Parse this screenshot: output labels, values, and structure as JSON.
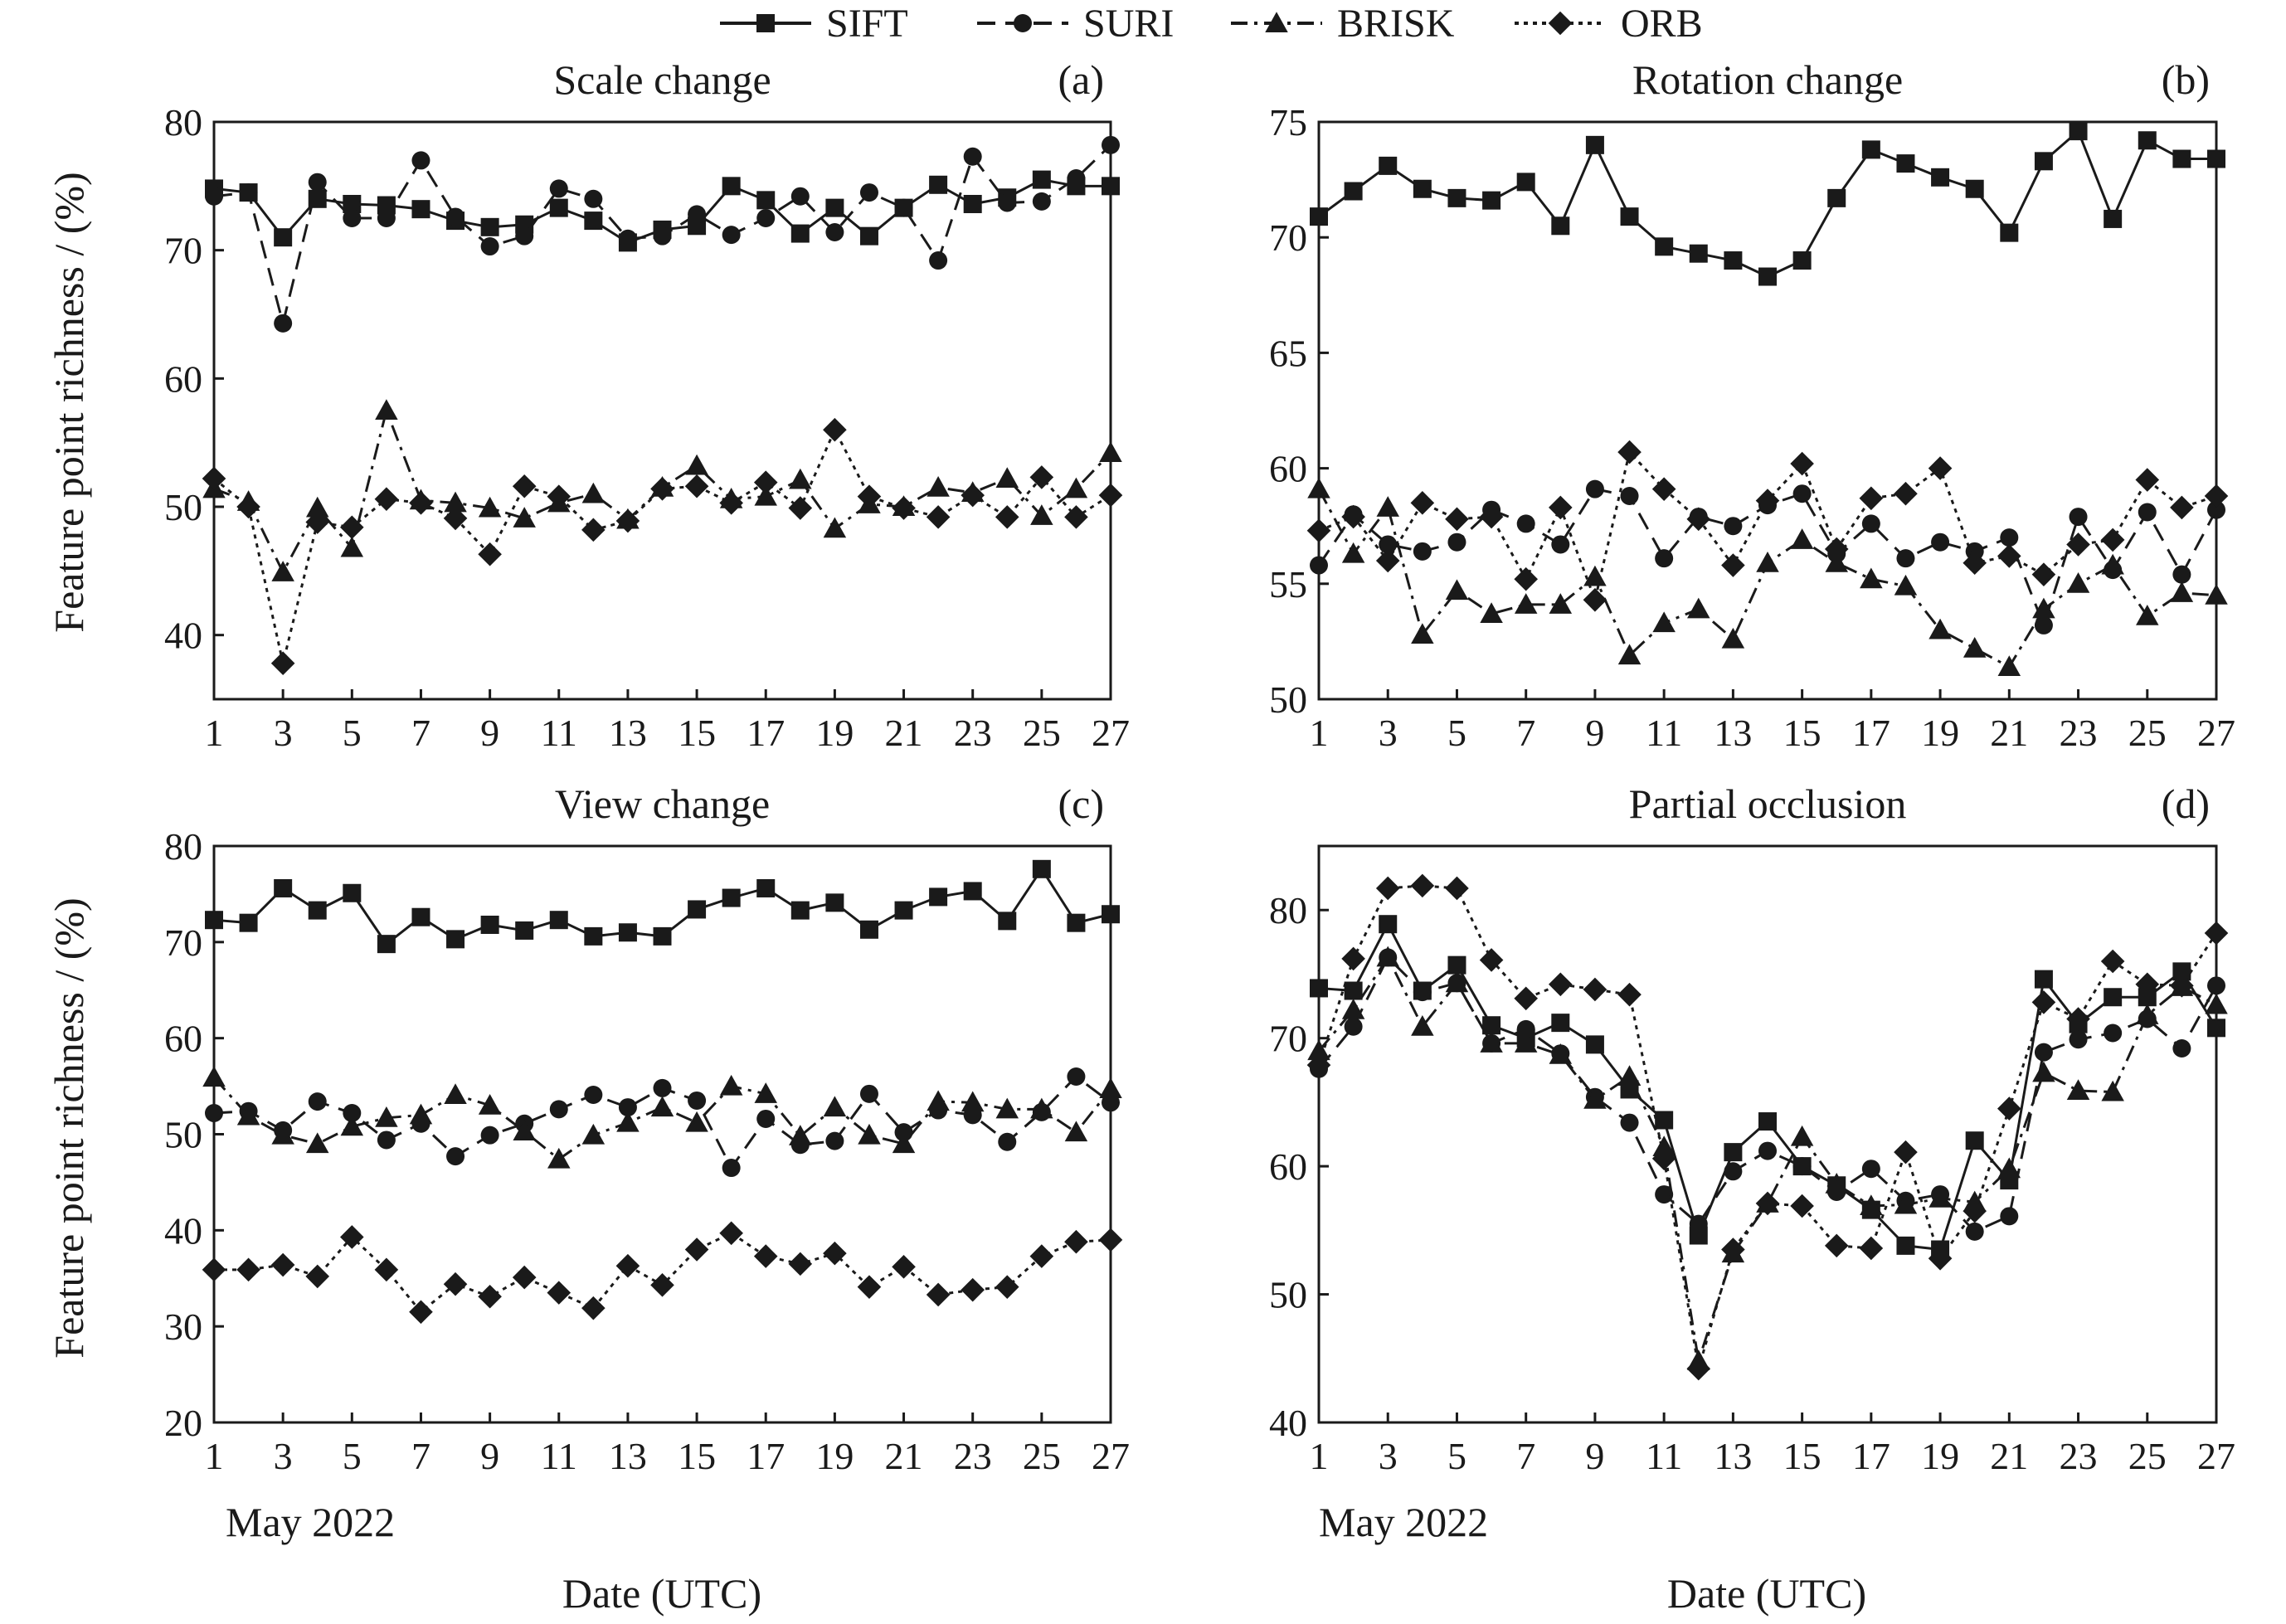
{
  "legend": [
    {
      "name": "SIFT",
      "marker": "square",
      "dash": "solid"
    },
    {
      "name": "SURI",
      "marker": "circle",
      "dash": "dashed"
    },
    {
      "name": "BRISK",
      "marker": "triangle",
      "dash": "dashdot"
    },
    {
      "name": "ORB",
      "marker": "diamond",
      "dash": "dotted"
    }
  ],
  "ylabel": "Feature point richness / (%)",
  "xlabel": "Date (UTC)",
  "month_label": "May 2022",
  "chart_data": [
    {
      "type": "line",
      "id": "a",
      "title": "Scale change",
      "panel": "(a)",
      "x": [
        1,
        2,
        3,
        4,
        5,
        6,
        7,
        8,
        9,
        10,
        11,
        12,
        13,
        14,
        15,
        16,
        17,
        18,
        19,
        20,
        21,
        22,
        23,
        24,
        25,
        26,
        27
      ],
      "xticks": [
        1,
        3,
        5,
        7,
        9,
        11,
        13,
        15,
        17,
        19,
        21,
        23,
        25,
        27
      ],
      "ylim": [
        35,
        80
      ],
      "yticks": [
        40,
        50,
        60,
        70,
        80
      ],
      "series": [
        {
          "name": "SIFT",
          "values": [
            74.8,
            74.5,
            71.0,
            74.0,
            73.6,
            73.5,
            73.2,
            72.3,
            71.8,
            72.0,
            73.3,
            72.3,
            70.6,
            71.6,
            71.9,
            75.0,
            73.9,
            71.3,
            73.3,
            71.1,
            73.3,
            75.1,
            73.6,
            74.1,
            75.5,
            75.0,
            75.0
          ]
        },
        {
          "name": "SURI",
          "values": [
            74.2,
            74.5,
            64.3,
            75.3,
            72.5,
            72.5,
            77.0,
            72.6,
            70.3,
            71.1,
            74.8,
            74.0,
            70.9,
            71.1,
            72.8,
            71.2,
            72.5,
            74.2,
            71.4,
            74.5,
            73.3,
            69.2,
            77.3,
            73.7,
            73.8,
            75.6,
            78.2
          ]
        },
        {
          "name": "BRISK",
          "values": [
            51.4,
            50.4,
            44.9,
            49.9,
            46.8,
            57.5,
            50.5,
            50.3,
            49.9,
            49.1,
            50.3,
            51.0,
            49.0,
            51.5,
            53.2,
            50.6,
            50.8,
            52.1,
            48.3,
            50.2,
            50.0,
            51.5,
            51.1,
            52.2,
            49.3,
            51.4,
            54.2
          ]
        },
        {
          "name": "ORB",
          "values": [
            52.2,
            50.0,
            37.8,
            48.8,
            48.4,
            50.6,
            50.3,
            49.1,
            46.3,
            51.6,
            50.8,
            48.2,
            48.9,
            51.4,
            51.6,
            50.3,
            51.9,
            49.9,
            56.0,
            50.8,
            49.9,
            49.2,
            50.9,
            49.2,
            52.3,
            49.2,
            50.9
          ]
        }
      ]
    },
    {
      "type": "line",
      "id": "b",
      "title": "Rotation change",
      "panel": "(b)",
      "x": [
        1,
        2,
        3,
        4,
        5,
        6,
        7,
        8,
        9,
        10,
        11,
        12,
        13,
        14,
        15,
        16,
        17,
        18,
        19,
        20,
        21,
        22,
        23,
        24,
        25,
        26,
        27
      ],
      "xticks": [
        1,
        3,
        5,
        7,
        9,
        11,
        13,
        15,
        17,
        19,
        21,
        23,
        25,
        27
      ],
      "ylim": [
        50,
        75
      ],
      "yticks": [
        50,
        55,
        60,
        65,
        70,
        75
      ],
      "series": [
        {
          "name": "SIFT",
          "values": [
            70.9,
            72.0,
            73.1,
            72.1,
            71.7,
            71.6,
            72.4,
            70.5,
            74.0,
            70.9,
            69.6,
            69.3,
            69.0,
            68.3,
            69.0,
            71.7,
            73.8,
            73.2,
            72.6,
            72.1,
            70.2,
            73.3,
            74.6,
            70.8,
            74.2,
            73.4,
            73.4
          ]
        },
        {
          "name": "SURI",
          "values": [
            55.8,
            58.0,
            56.7,
            56.4,
            56.8,
            58.2,
            57.6,
            56.7,
            59.1,
            58.8,
            56.1,
            57.9,
            57.5,
            58.4,
            58.9,
            56.3,
            57.6,
            56.1,
            56.8,
            56.4,
            57.0,
            53.2,
            57.9,
            55.6,
            58.1,
            55.4,
            58.2
          ]
        },
        {
          "name": "BRISK",
          "values": [
            59.1,
            56.3,
            58.3,
            52.8,
            54.7,
            53.7,
            54.1,
            54.1,
            55.3,
            51.9,
            53.3,
            53.9,
            52.6,
            55.9,
            56.9,
            55.9,
            55.2,
            54.9,
            53.0,
            52.2,
            51.4,
            53.9,
            55.0,
            55.8,
            53.6,
            54.6,
            54.5
          ]
        },
        {
          "name": "ORB",
          "values": [
            57.3,
            57.9,
            56.0,
            58.5,
            57.8,
            57.9,
            55.2,
            58.3,
            54.3,
            60.7,
            59.1,
            57.8,
            55.8,
            58.6,
            60.2,
            56.5,
            58.7,
            58.9,
            60.0,
            55.9,
            56.2,
            55.4,
            56.7,
            56.9,
            59.5,
            58.3,
            58.8
          ]
        }
      ]
    },
    {
      "type": "line",
      "id": "c",
      "title": "View change",
      "panel": "(c)",
      "x": [
        1,
        2,
        3,
        4,
        5,
        6,
        7,
        8,
        9,
        10,
        11,
        12,
        13,
        14,
        15,
        16,
        17,
        18,
        19,
        20,
        21,
        22,
        23,
        24,
        25,
        26,
        27
      ],
      "xticks": [
        1,
        3,
        5,
        7,
        9,
        11,
        13,
        15,
        17,
        19,
        21,
        23,
        25,
        27
      ],
      "ylim": [
        20,
        80
      ],
      "yticks": [
        20,
        30,
        40,
        50,
        60,
        70,
        80
      ],
      "series": [
        {
          "name": "SIFT",
          "values": [
            72.3,
            72.0,
            75.6,
            73.3,
            75.1,
            69.8,
            72.6,
            70.3,
            71.8,
            71.2,
            72.3,
            70.6,
            71.0,
            70.6,
            73.4,
            74.6,
            75.6,
            73.3,
            74.1,
            71.3,
            73.3,
            74.7,
            75.3,
            72.2,
            77.6,
            72.0,
            72.9
          ]
        },
        {
          "name": "SURI",
          "values": [
            52.2,
            52.4,
            50.4,
            53.4,
            52.2,
            49.4,
            51.1,
            47.7,
            49.9,
            51.1,
            52.6,
            54.1,
            52.8,
            54.8,
            53.5,
            46.5,
            51.6,
            48.9,
            49.3,
            54.2,
            50.2,
            52.5,
            52.0,
            49.2,
            52.3,
            56.0,
            53.3
          ]
        },
        {
          "name": "BRISK",
          "values": [
            55.9,
            51.9,
            49.9,
            49.0,
            50.8,
            51.7,
            52.0,
            54.1,
            53.0,
            50.3,
            47.4,
            49.9,
            51.2,
            52.8,
            51.2,
            55.0,
            54.2,
            49.8,
            52.8,
            49.9,
            49.0,
            53.4,
            53.3,
            52.6,
            52.6,
            50.2,
            54.7
          ]
        },
        {
          "name": "ORB",
          "values": [
            35.9,
            35.9,
            36.4,
            35.2,
            39.3,
            35.9,
            31.5,
            34.4,
            33.1,
            35.1,
            33.5,
            31.9,
            36.3,
            34.3,
            38.0,
            39.7,
            37.3,
            36.5,
            37.6,
            34.1,
            36.2,
            33.3,
            33.8,
            34.1,
            37.3,
            38.8,
            39.0
          ]
        }
      ]
    },
    {
      "type": "line",
      "id": "d",
      "title": "Partial occlusion",
      "panel": "(d)",
      "x": [
        1,
        2,
        3,
        4,
        5,
        6,
        7,
        8,
        9,
        10,
        11,
        12,
        13,
        14,
        15,
        16,
        17,
        18,
        19,
        20,
        21,
        22,
        23,
        24,
        25,
        26,
        27
      ],
      "xticks": [
        1,
        3,
        5,
        7,
        9,
        11,
        13,
        15,
        17,
        19,
        21,
        23,
        25,
        27
      ],
      "ylim": [
        40,
        85
      ],
      "yticks": [
        40,
        50,
        60,
        70,
        80
      ],
      "series": [
        {
          "name": "SIFT",
          "values": [
            73.9,
            73.7,
            78.9,
            73.7,
            75.7,
            71.0,
            70.0,
            71.2,
            69.5,
            66.0,
            63.6,
            54.6,
            61.1,
            63.5,
            60.0,
            58.5,
            56.6,
            53.8,
            53.5,
            62.0,
            58.9,
            74.6,
            71.1,
            73.2,
            73.2,
            75.2,
            70.8
          ]
        },
        {
          "name": "SURI",
          "values": [
            67.6,
            70.9,
            76.3,
            73.6,
            74.3,
            69.6,
            70.7,
            68.8,
            65.4,
            63.4,
            57.8,
            55.5,
            59.6,
            61.2,
            60.0,
            58.0,
            59.8,
            57.3,
            57.8,
            54.9,
            56.1,
            68.9,
            69.9,
            70.4,
            71.5,
            69.2,
            74.1
          ]
        },
        {
          "name": "BRISK",
          "values": [
            69.0,
            72.2,
            76.3,
            70.9,
            74.3,
            69.6,
            69.6,
            68.7,
            65.2,
            67.0,
            61.5,
            44.8,
            53.2,
            57.1,
            62.3,
            58.6,
            56.9,
            57.0,
            57.5,
            57.2,
            59.8,
            67.3,
            65.9,
            65.8,
            71.8,
            74.0,
            72.6
          ]
        },
        {
          "name": "ORB",
          "values": [
            67.9,
            76.2,
            81.7,
            81.9,
            81.7,
            76.1,
            73.1,
            74.2,
            73.8,
            73.4,
            60.6,
            44.2,
            53.5,
            57.1,
            56.9,
            53.8,
            53.6,
            61.1,
            52.8,
            56.5,
            64.5,
            72.8,
            71.5,
            76.0,
            74.2,
            74.1,
            78.2
          ]
        }
      ]
    }
  ]
}
